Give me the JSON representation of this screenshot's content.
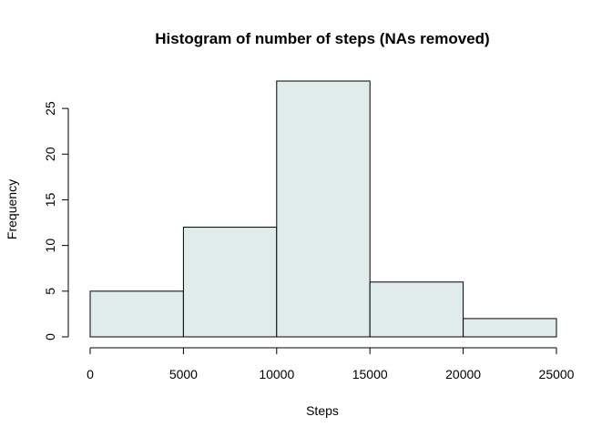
{
  "chart_data": {
    "type": "bar",
    "title": "Histogram of number of steps (NAs removed)",
    "xlabel": "Steps",
    "ylabel": "Frequency",
    "bins": [
      {
        "start": 0,
        "end": 5000,
        "count": 5
      },
      {
        "start": 5000,
        "end": 10000,
        "count": 12
      },
      {
        "start": 10000,
        "end": 15000,
        "count": 28
      },
      {
        "start": 15000,
        "end": 20000,
        "count": 6
      },
      {
        "start": 20000,
        "end": 25000,
        "count": 2
      }
    ],
    "xlim": [
      0,
      25000
    ],
    "ylim": [
      0,
      28
    ],
    "x_ticks": [
      0,
      5000,
      10000,
      15000,
      20000,
      25000
    ],
    "y_ticks": [
      0,
      5,
      10,
      15,
      20,
      25
    ],
    "bar_color": "#dfeceb",
    "grid": false,
    "legend": "none"
  }
}
